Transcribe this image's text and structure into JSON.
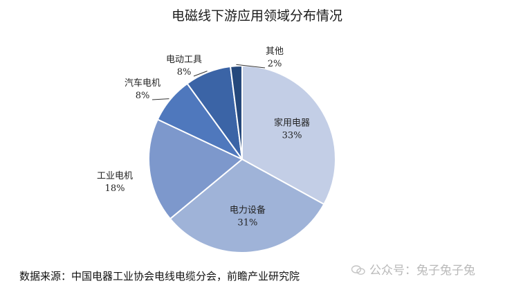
{
  "chart_data": {
    "type": "pie",
    "title": "电磁线下游应用领域分布情况",
    "slices": [
      {
        "label": "家用电器",
        "value": 33,
        "value_label": "33%",
        "color": "#c3cee6"
      },
      {
        "label": "电力设备",
        "value": 31,
        "value_label": "31%",
        "color": "#9fb3d8"
      },
      {
        "label": "工业电机",
        "value": 18,
        "value_label": "18%",
        "color": "#7d98cc"
      },
      {
        "label": "汽车电机",
        "value": 8,
        "value_label": "8%",
        "color": "#4f78bd"
      },
      {
        "label": "电动工具",
        "value": 8,
        "value_label": "8%",
        "color": "#3b64a6"
      },
      {
        "label": "其他",
        "value": 2,
        "value_label": "2%",
        "color": "#25487c"
      }
    ],
    "start": "12 o'clock",
    "direction": "clockwise"
  },
  "source": "数据来源：中国电器工业协会电线电缆分会，前瞻产业研究院",
  "watermark": "公众号：兔子兔子兔"
}
